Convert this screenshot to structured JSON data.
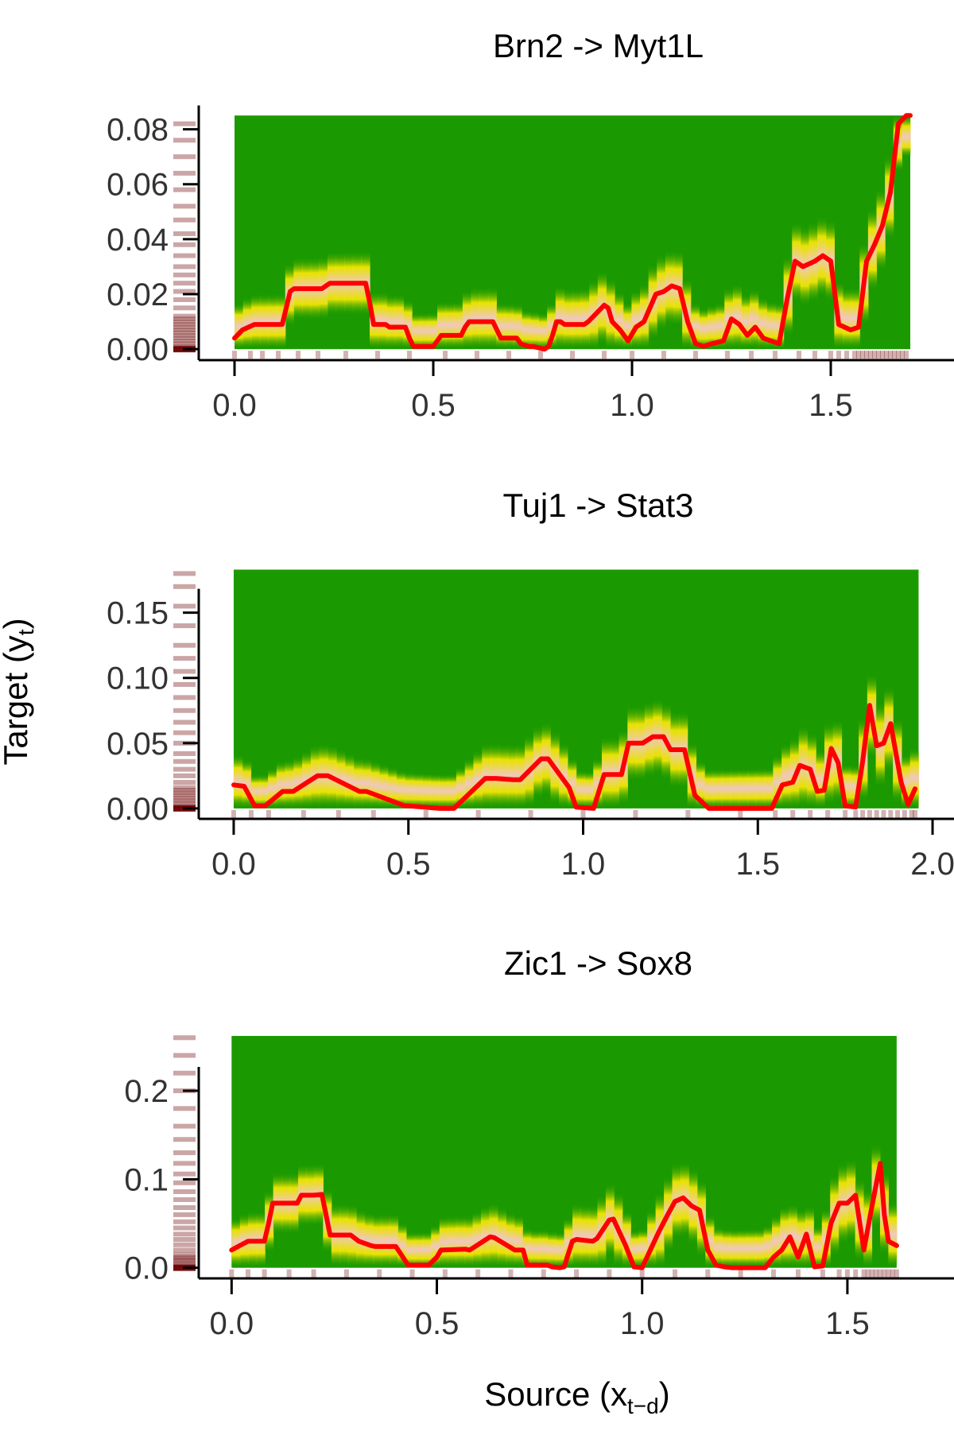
{
  "colors": {
    "heat_low": "#1a9a00",
    "heat_mid": "#f2e600",
    "heat_high": "#f0c8c0",
    "curve": "#ff0000",
    "rug": "#6b0000",
    "axis": "#000000",
    "text": "#333333"
  },
  "shared": {
    "ylabel_main": "Target (y",
    "ylabel_sub": "t",
    "ylabel_close": ")",
    "xlabel_main": "Source (x",
    "xlabel_sub": "t−d",
    "xlabel_close": ")"
  },
  "chart_data": [
    {
      "type": "heatmap",
      "title": "Brn2 -> Myt1L",
      "xlim": [
        -0.09,
        1.8
      ],
      "ylim": [
        -0.004,
        0.09
      ],
      "xticks": [
        0,
        0.5,
        1,
        1.5
      ],
      "xtick_labels": [
        "0.0",
        "0.5",
        "1.0",
        "1.5"
      ],
      "yticks": [
        0,
        0.02,
        0.04,
        0.06,
        0.08
      ],
      "ytick_labels": [
        "0.00",
        "0.02",
        "0.04",
        "0.06",
        "0.08"
      ],
      "x_range": [
        0,
        1.7
      ],
      "y_top": 0.085,
      "curve_x": [
        0,
        0.02,
        0.05,
        0.07,
        0.12,
        0.13,
        0.14,
        0.15,
        0.22,
        0.23,
        0.24,
        0.25,
        0.33,
        0.34,
        0.35,
        0.38,
        0.39,
        0.43,
        0.44,
        0.45,
        0.5,
        0.51,
        0.52,
        0.57,
        0.58,
        0.59,
        0.65,
        0.66,
        0.67,
        0.71,
        0.72,
        0.74,
        0.75,
        0.78,
        0.79,
        0.8,
        0.81,
        0.82,
        0.83,
        0.84,
        0.88,
        0.89,
        0.93,
        0.94,
        0.95,
        0.97,
        0.99,
        1.01,
        1.03,
        1.06,
        1.08,
        1.1,
        1.12,
        1.14,
        1.16,
        1.18,
        1.2,
        1.23,
        1.25,
        1.27,
        1.29,
        1.31,
        1.33,
        1.35,
        1.37,
        1.39,
        1.41,
        1.43,
        1.46,
        1.48,
        1.5,
        1.52,
        1.55,
        1.57,
        1.59,
        1.61,
        1.63,
        1.65,
        1.67,
        1.69,
        1.7
      ],
      "curve_y": [
        0.004,
        0.007,
        0.009,
        0.009,
        0.009,
        0.015,
        0.021,
        0.022,
        0.022,
        0.023,
        0.024,
        0.024,
        0.024,
        0.017,
        0.009,
        0.009,
        0.008,
        0.008,
        0.004,
        0.001,
        0.001,
        0.003,
        0.005,
        0.005,
        0.008,
        0.01,
        0.01,
        0.007,
        0.004,
        0.004,
        0.002,
        0.001,
        0.001,
        0.0,
        0.001,
        0.005,
        0.01,
        0.01,
        0.009,
        0.009,
        0.009,
        0.01,
        0.016,
        0.015,
        0.01,
        0.007,
        0.003,
        0.008,
        0.01,
        0.02,
        0.021,
        0.023,
        0.022,
        0.01,
        0.002,
        0.001,
        0.002,
        0.003,
        0.011,
        0.009,
        0.005,
        0.008,
        0.004,
        0.003,
        0.002,
        0.018,
        0.032,
        0.03,
        0.032,
        0.034,
        0.032,
        0.009,
        0.007,
        0.008,
        0.032,
        0.038,
        0.045,
        0.057,
        0.082,
        0.085,
        0.085
      ],
      "rug_x": [
        0.0,
        0.04,
        0.07,
        0.11,
        0.16,
        0.21,
        0.28,
        0.36,
        0.44,
        0.53,
        0.61,
        0.69,
        0.77,
        0.85,
        0.93,
        1.0,
        1.08,
        1.16,
        1.24,
        1.3,
        1.36,
        1.42,
        1.46,
        1.5,
        1.52,
        1.54,
        1.56,
        1.57,
        1.58,
        1.59,
        1.6,
        1.61,
        1.62,
        1.63,
        1.64,
        1.65,
        1.66,
        1.67,
        1.68,
        1.69
      ],
      "rug_y": [
        0.0,
        0.002,
        0.004,
        0.006,
        0.008,
        0.01,
        0.012,
        0.015,
        0.018,
        0.021,
        0.024,
        0.027,
        0.03,
        0.034,
        0.038,
        0.042,
        0.047,
        0.052,
        0.058,
        0.064,
        0.07,
        0.076,
        0.082,
        0.0,
        0.001,
        0.003,
        0.005,
        0.007,
        0.009,
        0.011
      ]
    },
    {
      "type": "heatmap",
      "title": "Tuj1 -> Stat3",
      "xlim": [
        -0.1,
        2.05
      ],
      "ylim": [
        -0.008,
        0.19
      ],
      "xticks": [
        0,
        0.5,
        1,
        1.5,
        2
      ],
      "xtick_labels": [
        "0.0",
        "0.5",
        "1.0",
        "1.5",
        "2.0"
      ],
      "yticks": [
        0,
        0.05,
        0.1,
        0.15
      ],
      "ytick_labels": [
        "0.00",
        "0.05",
        "0.10",
        "0.15"
      ],
      "x_range": [
        0,
        1.96
      ],
      "y_top": 0.183,
      "curve_x": [
        0,
        0.03,
        0.06,
        0.09,
        0.14,
        0.17,
        0.24,
        0.27,
        0.36,
        0.38,
        0.49,
        0.5,
        0.59,
        0.61,
        0.63,
        0.72,
        0.75,
        0.8,
        0.82,
        0.88,
        0.9,
        0.96,
        0.98,
        1.03,
        1.06,
        1.11,
        1.13,
        1.17,
        1.2,
        1.23,
        1.25,
        1.29,
        1.32,
        1.36,
        1.4,
        1.5,
        1.54,
        1.57,
        1.6,
        1.62,
        1.65,
        1.67,
        1.69,
        1.71,
        1.73,
        1.75,
        1.78,
        1.8,
        1.82,
        1.84,
        1.86,
        1.88,
        1.91,
        1.93,
        1.95
      ],
      "curve_y": [
        0.018,
        0.017,
        0.002,
        0.002,
        0.013,
        0.013,
        0.025,
        0.025,
        0.013,
        0.013,
        0.002,
        0.002,
        0.0,
        0.0,
        0.0,
        0.023,
        0.023,
        0.022,
        0.022,
        0.038,
        0.038,
        0.016,
        0.001,
        0.0,
        0.026,
        0.026,
        0.05,
        0.05,
        0.055,
        0.055,
        0.045,
        0.045,
        0.01,
        0.0,
        0.0,
        0.0,
        0.0,
        0.018,
        0.02,
        0.033,
        0.03,
        0.013,
        0.014,
        0.046,
        0.035,
        0.002,
        0.001,
        0.036,
        0.079,
        0.048,
        0.05,
        0.065,
        0.02,
        0.003,
        0.015
      ],
      "rug_x": [
        0.0,
        0.05,
        0.1,
        0.2,
        0.3,
        0.4,
        0.55,
        0.7,
        0.85,
        1.0,
        1.15,
        1.3,
        1.45,
        1.55,
        1.6,
        1.65,
        1.7,
        1.75,
        1.78,
        1.8,
        1.82,
        1.84,
        1.86,
        1.88,
        1.9,
        1.92,
        1.94,
        1.95
      ],
      "rug_y": [
        0.0,
        0.004,
        0.008,
        0.012,
        0.016,
        0.02,
        0.025,
        0.03,
        0.036,
        0.042,
        0.05,
        0.058,
        0.066,
        0.075,
        0.085,
        0.095,
        0.105,
        0.115,
        0.125,
        0.14,
        0.155,
        0.17,
        0.18,
        0.0,
        0.002,
        0.006,
        0.01,
        0.014
      ]
    },
    {
      "type": "heatmap",
      "title": "Zic1 -> Sox8",
      "xlim": [
        -0.08,
        1.75
      ],
      "ylim": [
        -0.012,
        0.28
      ],
      "xticks": [
        0,
        0.5,
        1,
        1.5
      ],
      "xtick_labels": [
        "0.0",
        "0.5",
        "1.0",
        "1.5"
      ],
      "yticks": [
        0,
        0.1,
        0.2
      ],
      "ytick_labels": [
        "0.0",
        "0.1",
        "0.2"
      ],
      "x_range": [
        0,
        1.62
      ],
      "y_top": 0.262,
      "curve_x": [
        0,
        0.02,
        0.04,
        0.08,
        0.09,
        0.1,
        0.16,
        0.17,
        0.2,
        0.22,
        0.23,
        0.24,
        0.29,
        0.31,
        0.34,
        0.35,
        0.4,
        0.42,
        0.43,
        0.48,
        0.5,
        0.51,
        0.57,
        0.58,
        0.63,
        0.64,
        0.69,
        0.71,
        0.72,
        0.77,
        0.78,
        0.8,
        0.81,
        0.83,
        0.84,
        0.88,
        0.89,
        0.92,
        0.93,
        0.96,
        0.98,
        1.0,
        1.02,
        1.04,
        1.06,
        1.08,
        1.1,
        1.12,
        1.14,
        1.16,
        1.18,
        1.2,
        1.22,
        1.24,
        1.3,
        1.32,
        1.34,
        1.36,
        1.38,
        1.4,
        1.42,
        1.44,
        1.46,
        1.48,
        1.5,
        1.52,
        1.54,
        1.56,
        1.58,
        1.59,
        1.6,
        1.62
      ],
      "curve_y": [
        0.02,
        0.025,
        0.03,
        0.03,
        0.05,
        0.073,
        0.073,
        0.082,
        0.082,
        0.083,
        0.06,
        0.037,
        0.037,
        0.03,
        0.025,
        0.024,
        0.024,
        0.01,
        0.003,
        0.003,
        0.012,
        0.02,
        0.021,
        0.02,
        0.035,
        0.034,
        0.02,
        0.02,
        0.003,
        0.003,
        0.001,
        0.0,
        0.001,
        0.03,
        0.032,
        0.03,
        0.033,
        0.054,
        0.055,
        0.025,
        0.001,
        0.0,
        0.02,
        0.04,
        0.058,
        0.075,
        0.079,
        0.07,
        0.065,
        0.02,
        0.003,
        0.001,
        0.0,
        0.0,
        0.0,
        0.012,
        0.02,
        0.035,
        0.012,
        0.038,
        0.001,
        0.002,
        0.05,
        0.073,
        0.073,
        0.082,
        0.02,
        0.07,
        0.118,
        0.06,
        0.03,
        0.025
      ],
      "rug_x": [
        0.0,
        0.04,
        0.08,
        0.14,
        0.2,
        0.28,
        0.36,
        0.44,
        0.52,
        0.6,
        0.68,
        0.76,
        0.84,
        0.92,
        1.0,
        1.08,
        1.16,
        1.24,
        1.32,
        1.38,
        1.44,
        1.48,
        1.5,
        1.52,
        1.54,
        1.55,
        1.56,
        1.57,
        1.58,
        1.59,
        1.6,
        1.61,
        1.62
      ],
      "rug_y": [
        0.0,
        0.005,
        0.01,
        0.015,
        0.02,
        0.026,
        0.032,
        0.038,
        0.045,
        0.052,
        0.06,
        0.068,
        0.077,
        0.086,
        0.096,
        0.106,
        0.118,
        0.13,
        0.145,
        0.16,
        0.18,
        0.2,
        0.22,
        0.24,
        0.26,
        0.0,
        0.003,
        0.008,
        0.012
      ]
    }
  ]
}
